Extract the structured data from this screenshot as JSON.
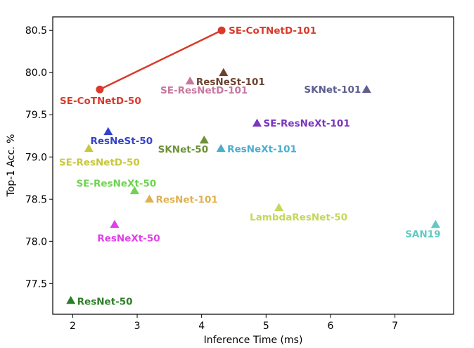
{
  "chart_data": {
    "type": "scatter",
    "title": "",
    "xlabel": "Inference Time (ms)",
    "ylabel": "Top-1 Acc. %",
    "xlim": [
      1.69,
      7.91
    ],
    "ylim": [
      77.136,
      80.66
    ],
    "xticks": [
      2,
      3,
      4,
      5,
      6,
      7
    ],
    "yticks": [
      77.5,
      78.0,
      78.5,
      79.0,
      79.5,
      80.0,
      80.5
    ],
    "xtick_labels": [
      "2",
      "3",
      "4",
      "5",
      "6",
      "7"
    ],
    "ytick_labels": [
      "77.5",
      "78.0",
      "78.5",
      "79.0",
      "79.5",
      "80.0",
      "80.5"
    ],
    "grid": false,
    "line_series": {
      "points": [
        "SE-CoTNetD-50",
        "SE-CoTNetD-101"
      ],
      "color": "#d93a2b"
    },
    "points": [
      {
        "name": "SE-CoTNetD-101",
        "x": 4.31,
        "y": 80.5,
        "marker": "circle",
        "color": "#d93a2b"
      },
      {
        "name": "SE-CoTNetD-50",
        "x": 2.42,
        "y": 79.8,
        "marker": "circle",
        "color": "#d93a2b"
      },
      {
        "name": "ResNeSt-101",
        "x": 4.34,
        "y": 80.0,
        "marker": "triangle",
        "color": "#6b4330"
      },
      {
        "name": "SE-ResNetD-101",
        "x": 3.82,
        "y": 79.9,
        "marker": "triangle",
        "color": "#c7779e"
      },
      {
        "name": "SKNet-101",
        "x": 6.56,
        "y": 79.8,
        "marker": "triangle",
        "color": "#5e5f8f"
      },
      {
        "name": "SE-ResNeXt-101",
        "x": 4.86,
        "y": 79.4,
        "marker": "triangle",
        "color": "#7b35c0"
      },
      {
        "name": "ResNeSt-50",
        "x": 2.55,
        "y": 79.3,
        "marker": "triangle",
        "color": "#3344c8"
      },
      {
        "name": "SKNet-50",
        "x": 4.04,
        "y": 79.2,
        "marker": "triangle",
        "color": "#6f9038"
      },
      {
        "name": "ResNeXt-101",
        "x": 4.3,
        "y": 79.1,
        "marker": "triangle",
        "color": "#4aaed0"
      },
      {
        "name": "SE-ResNetD-50",
        "x": 2.25,
        "y": 79.1,
        "marker": "triangle",
        "color": "#c8c83a"
      },
      {
        "name": "SE-ResNeXt-50",
        "x": 2.96,
        "y": 78.6,
        "marker": "triangle",
        "color": "#6ed350"
      },
      {
        "name": "ResNet-101",
        "x": 3.19,
        "y": 78.5,
        "marker": "triangle",
        "color": "#e0b050"
      },
      {
        "name": "LambdaResNet-50",
        "x": 5.2,
        "y": 78.4,
        "marker": "triangle",
        "color": "#c3d95a"
      },
      {
        "name": "SAN19",
        "x": 7.63,
        "y": 78.2,
        "marker": "triangle",
        "color": "#60cbc0"
      },
      {
        "name": "ResNeXt-50",
        "x": 2.65,
        "y": 78.2,
        "marker": "triangle",
        "color": "#e040e8"
      },
      {
        "name": "ResNet-50",
        "x": 1.97,
        "y": 77.3,
        "marker": "triangle",
        "color": "#2e7d2a"
      }
    ]
  }
}
